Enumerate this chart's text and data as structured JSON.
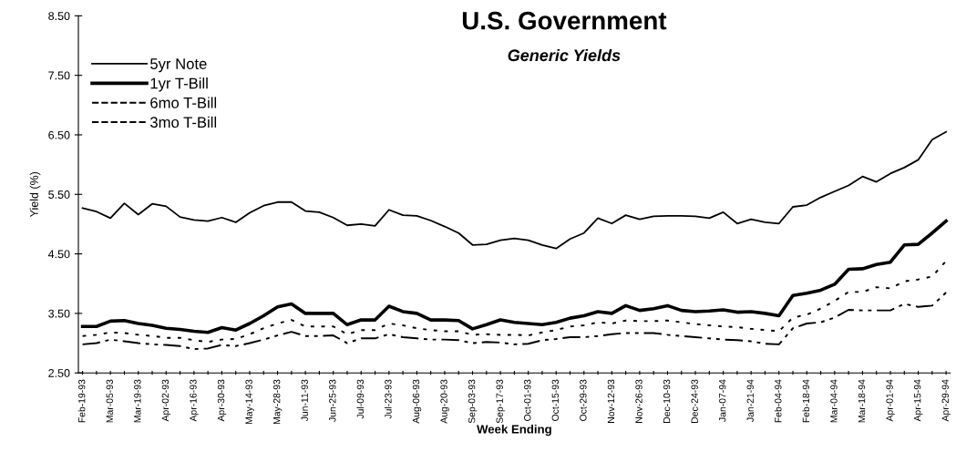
{
  "chart_data": {
    "type": "line",
    "title": "U.S. Government",
    "subtitle": "Generic Yields",
    "xlabel": "Week Ending",
    "ylabel": "Yield (%)",
    "categories": [
      "Feb-19-93",
      null,
      "Mar-05-93",
      null,
      "Mar-19-93",
      null,
      "Apr-02-93",
      null,
      "Apr-16-93",
      null,
      "Apr-30-93",
      null,
      "May-14-93",
      null,
      "May-28-93",
      null,
      "Jun-11-93",
      null,
      "Jun-25-93",
      null,
      "Jul-09-93",
      null,
      "Jul-23-93",
      null,
      "Aug-06-93",
      null,
      "Aug-20-93",
      null,
      "Sep-03-93",
      null,
      "Sep-17-93",
      null,
      "Oct-01-93",
      null,
      "Oct-15-93",
      null,
      "Oct-29-93",
      null,
      "Nov-12-93",
      null,
      "Nov-26-93",
      null,
      "Dec-10-93",
      null,
      "Dec-24-93",
      null,
      "Jan-07-94",
      null,
      "Jan-21-94",
      null,
      "Feb-04-94",
      null,
      "Feb-18-94",
      null,
      "Mar-04-94",
      null,
      "Mar-18-94",
      null,
      "Apr-01-94",
      null,
      "Apr-15-94",
      null,
      "Apr-29-94"
    ],
    "series": [
      {
        "name": "5yr Note",
        "color": "#000000",
        "line_style": "solid",
        "values": [
          5.27,
          5.21,
          5.1,
          5.35,
          5.16,
          5.34,
          5.3,
          5.12,
          5.07,
          5.05,
          5.11,
          5.03,
          5.19,
          5.31,
          5.37,
          5.37,
          5.22,
          5.2,
          5.11,
          4.98,
          5.0,
          4.97,
          5.24,
          5.15,
          5.14,
          5.06,
          4.96,
          4.85,
          4.65,
          4.66,
          4.73,
          4.76,
          4.73,
          4.65,
          4.59,
          4.75,
          4.85,
          5.1,
          5.01,
          5.15,
          5.08,
          5.13,
          5.14,
          5.14,
          5.13,
          5.1,
          5.2,
          5.01,
          5.08,
          5.03,
          5.01,
          5.29,
          5.32,
          5.45,
          5.55,
          5.65,
          5.8,
          5.71,
          5.85,
          5.95,
          6.08,
          6.42,
          6.55
        ]
      },
      {
        "name": "1yr T-Bill",
        "color": "#000000",
        "line_style": "solid",
        "values": [
          3.28,
          3.28,
          3.37,
          3.38,
          3.33,
          3.3,
          3.25,
          3.23,
          3.2,
          3.18,
          3.26,
          3.22,
          3.33,
          3.46,
          3.61,
          3.66,
          3.5,
          3.5,
          3.5,
          3.31,
          3.39,
          3.39,
          3.62,
          3.53,
          3.5,
          3.39,
          3.39,
          3.38,
          3.24,
          3.31,
          3.39,
          3.35,
          3.33,
          3.31,
          3.35,
          3.42,
          3.46,
          3.53,
          3.5,
          3.63,
          3.55,
          3.58,
          3.63,
          3.55,
          3.53,
          3.54,
          3.56,
          3.52,
          3.53,
          3.5,
          3.46,
          3.8,
          3.84,
          3.89,
          3.99,
          4.24,
          4.25,
          4.32,
          4.36,
          4.65,
          4.66,
          4.85,
          5.05
        ]
      },
      {
        "name": "6mo T-Bill",
        "color": "#000000",
        "line_style": "dotted",
        "values": [
          3.12,
          3.14,
          3.18,
          3.17,
          3.14,
          3.12,
          3.09,
          3.09,
          3.05,
          3.02,
          3.06,
          3.07,
          3.15,
          3.25,
          3.33,
          3.39,
          3.28,
          3.28,
          3.28,
          3.15,
          3.22,
          3.22,
          3.33,
          3.3,
          3.25,
          3.22,
          3.2,
          3.2,
          3.14,
          3.15,
          3.14,
          3.14,
          3.13,
          3.18,
          3.22,
          3.28,
          3.3,
          3.35,
          3.33,
          3.38,
          3.37,
          3.37,
          3.38,
          3.35,
          3.32,
          3.3,
          3.28,
          3.27,
          3.24,
          3.22,
          3.2,
          3.43,
          3.48,
          3.58,
          3.71,
          3.86,
          3.86,
          3.94,
          3.92,
          4.04,
          4.07,
          4.12,
          4.38
        ]
      },
      {
        "name": "3mo T-Bill",
        "color": "#000000",
        "line_style": "dashed",
        "values": [
          2.98,
          3.0,
          3.06,
          3.03,
          3.0,
          2.98,
          2.97,
          2.95,
          2.9,
          2.91,
          2.97,
          2.95,
          3.0,
          3.06,
          3.13,
          3.19,
          3.12,
          3.12,
          3.13,
          3.0,
          3.08,
          3.08,
          3.15,
          3.1,
          3.08,
          3.06,
          3.06,
          3.05,
          3.0,
          3.02,
          3.01,
          2.98,
          2.99,
          3.05,
          3.07,
          3.1,
          3.1,
          3.12,
          3.15,
          3.17,
          3.17,
          3.17,
          3.14,
          3.12,
          3.1,
          3.08,
          3.06,
          3.05,
          3.03,
          2.99,
          2.98,
          3.25,
          3.33,
          3.35,
          3.43,
          3.56,
          3.55,
          3.55,
          3.55,
          3.66,
          3.61,
          3.63,
          3.85
        ]
      }
    ],
    "ylim": [
      2.5,
      8.5
    ],
    "yticks": [
      {
        "value": 2.5,
        "label": "2.50"
      },
      {
        "value": 3.5,
        "label": "3.50"
      },
      {
        "value": 4.5,
        "label": "4.50"
      },
      {
        "value": 5.5,
        "label": "5.50"
      },
      {
        "value": 6.5,
        "label": "6.50"
      },
      {
        "value": 7.5,
        "label": "7.50"
      },
      {
        "value": 8.5,
        "label": "8.50"
      }
    ],
    "grid": false,
    "legend": "top left",
    "marker": "none"
  }
}
